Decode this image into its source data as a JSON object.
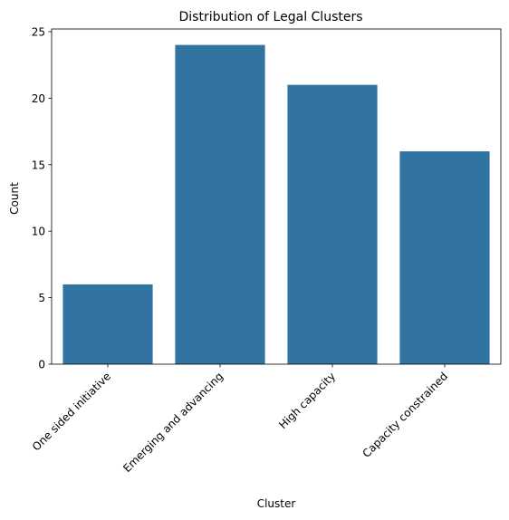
{
  "chart_data": {
    "type": "bar",
    "title": "Distribution of Legal Clusters",
    "xlabel": "Cluster",
    "ylabel": "Count",
    "categories": [
      "One sided initiative",
      "Emerging and advancing",
      "High capacity",
      "Capacity constrained"
    ],
    "values": [
      6,
      24,
      21,
      16
    ],
    "ylim": [
      0,
      25.2
    ],
    "yticks": [
      0,
      5,
      10,
      15,
      20,
      25
    ],
    "grid": false,
    "legend": "none",
    "bar_color": "#3274a1",
    "tick_label_rotation": 45
  }
}
